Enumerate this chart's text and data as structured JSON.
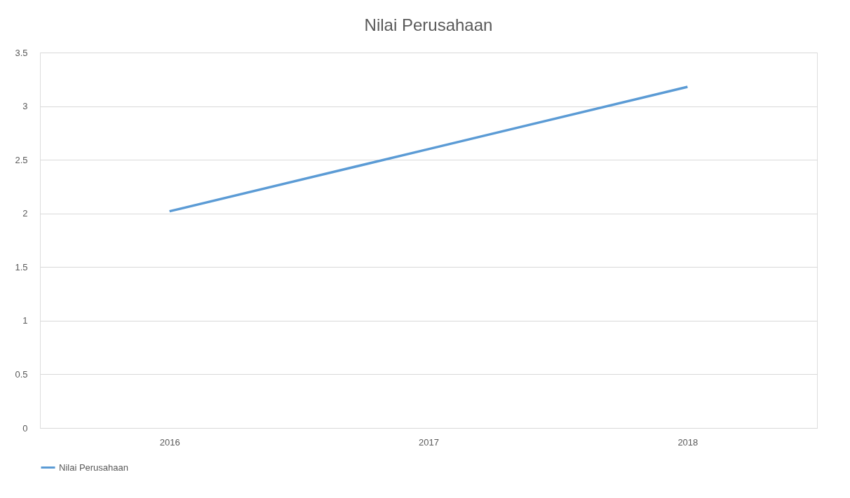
{
  "chart_data": {
    "type": "line",
    "title": "Nilai Perusahaan",
    "categories": [
      "2016",
      "2017",
      "2018"
    ],
    "series": [
      {
        "name": "Nilai Perusahaan",
        "color": "#5b9bd5",
        "values": [
          2.02,
          2.6,
          3.18
        ]
      }
    ],
    "ylim": [
      0,
      3.5
    ],
    "yticks": [
      0,
      0.5,
      1,
      1.5,
      2,
      2.5,
      3,
      3.5
    ],
    "grid": "y",
    "legend": "bottom",
    "marker": "none",
    "line_style": "solid"
  }
}
